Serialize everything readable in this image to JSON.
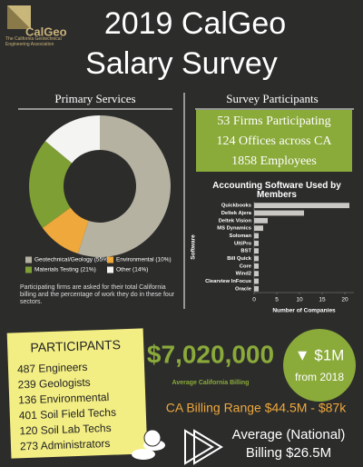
{
  "header": {
    "logo": "CalGeo",
    "logo_tagline": "The California Geotechnical Engineering Association",
    "title_line1": "2019 CalGeo",
    "title_line2": "Salary Survey"
  },
  "chart_data": [
    {
      "type": "pie",
      "donut": true,
      "title": "Primary Services",
      "categories": [
        "Geotechnical/Geology (55%)",
        "Environmental (10%)",
        "Materials Testing (21%)",
        "Other (14%)"
      ],
      "values": [
        55,
        10,
        21,
        14
      ],
      "colors": [
        "#b6b2a2",
        "#eea83c",
        "#7e9f34",
        "#f4f4f2"
      ],
      "note": "Participating firms are asked for their total California billing and the percentage of work they do in these four sectors."
    },
    {
      "type": "bar",
      "orientation": "horizontal",
      "title": "Accounting Software Used by Members",
      "categories": [
        "Quickbooks",
        "Deltek Ajera",
        "Deltek Vision",
        "MS Dynamics",
        "Soloman",
        "UltiPro",
        "BST",
        "Bill Quick",
        "Core",
        "Wind2",
        "Clearview InFocus",
        "Oracle"
      ],
      "values": [
        21,
        11,
        3,
        2,
        1,
        1,
        1,
        1,
        1,
        1,
        1,
        1
      ],
      "color": "#c9c8c4",
      "xlim": [
        0,
        22
      ],
      "xticks": [
        0,
        5,
        10,
        15,
        20
      ],
      "xlabel": "Number of Companies",
      "ylabel": "Software"
    }
  ],
  "survey_participants": {
    "title": "Survey Participants",
    "lines": [
      "53 Firms Participating",
      "124 Offices across CA",
      "1858 Employees"
    ]
  },
  "participants": {
    "title": "PARTICIPANTS",
    "lines": [
      "487 Engineers",
      "239 Geologists",
      "136 Environmental",
      "401 Soil Field Techs",
      "120 Soil Lab Techs",
      "273 Administrators"
    ]
  },
  "billing": {
    "average": "$7,020,000",
    "average_label": "Average California Billing",
    "change": "▼ $1M",
    "change_label": "from 2018",
    "range": "CA Billing Range  $44.5M - $87k",
    "national_line1": "Average (National)",
    "national_line2": "Billing $26.5M"
  }
}
